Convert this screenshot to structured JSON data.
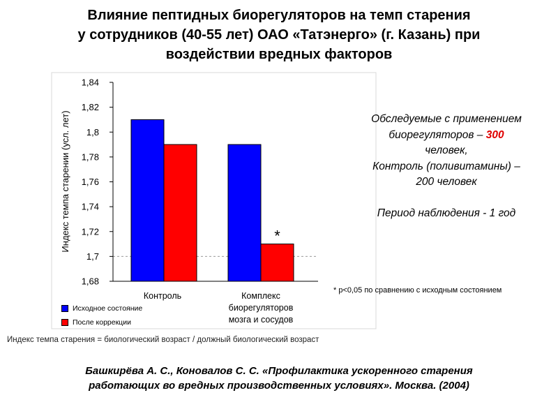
{
  "title_lines": [
    "Влияние пептидных биорегуляторов на темп старения",
    "у сотрудников (40-55 лет) ОАО «Татэнерго» (г. Казань) при",
    "воздействии вредных факторов"
  ],
  "chart_data": {
    "type": "bar",
    "categories": [
      "Контроль",
      "Комплекс биорегуляторов мозга и сосудов"
    ],
    "category_lines": [
      [
        "Контроль"
      ],
      [
        "Комплекс",
        "биорегуляторов",
        "мозга и сосудов"
      ]
    ],
    "series": [
      {
        "name": "Исходное состояние",
        "values": [
          1.81,
          1.79
        ]
      },
      {
        "name": "После коррекции",
        "values": [
          1.79,
          1.71
        ]
      }
    ],
    "ylabel": "Индекс темпа старении (усл. лет)",
    "ylim": [
      1.68,
      1.84
    ],
    "yticks": [
      "1,84",
      "1,82",
      "1,8",
      "1,78",
      "1,76",
      "1,74",
      "1,72",
      "1,7",
      "1,68"
    ],
    "ytick_values": [
      1.84,
      1.82,
      1.8,
      1.78,
      1.76,
      1.74,
      1.72,
      1.7,
      1.68
    ],
    "grid": false,
    "annotation": "*",
    "legend_placement": "bottom-left",
    "colors": [
      "#0000ff",
      "#ff0000"
    ]
  },
  "info": {
    "line1": "Обследуемые с применением",
    "line2_prefix": "биорегуляторов – ",
    "line2_number": "300",
    "line3": "человек,",
    "line4": "Контроль (поливитамины) –",
    "line5": "200 человек",
    "line6": "Период наблюдения -  1 год"
  },
  "footnote": "* p<0,05 по сравнению с исходным состоянием",
  "formula": "Индекс темпа старения = биологический возраст / должный биологический возраст",
  "reference_lines": [
    "Башкирёва А. С., Коновалов С. С. «Профилактика ускоренного старения",
    "работающих во вредных производственных условиях». Москва. (2004)"
  ]
}
